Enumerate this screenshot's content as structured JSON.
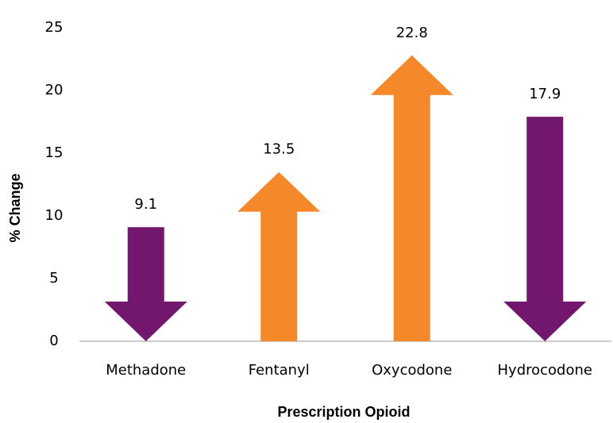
{
  "chart_data": {
    "type": "arrow-bar",
    "x_label": "Prescription Opioid",
    "y_label": "% Change",
    "categories": [
      "Methadone",
      "Fentanyl",
      "Oxycodone",
      "Hydrocodone"
    ],
    "values": [
      9.1,
      13.5,
      22.8,
      17.9
    ],
    "colors": [
      "#72166e",
      "#f5892a",
      "#f5892a",
      "#72166e"
    ],
    "directions": [
      "down",
      "up",
      "up",
      "down"
    ],
    "ylim": [
      0,
      25
    ],
    "yticks": [
      0,
      5,
      10,
      15,
      20,
      25
    ],
    "grid": false
  }
}
